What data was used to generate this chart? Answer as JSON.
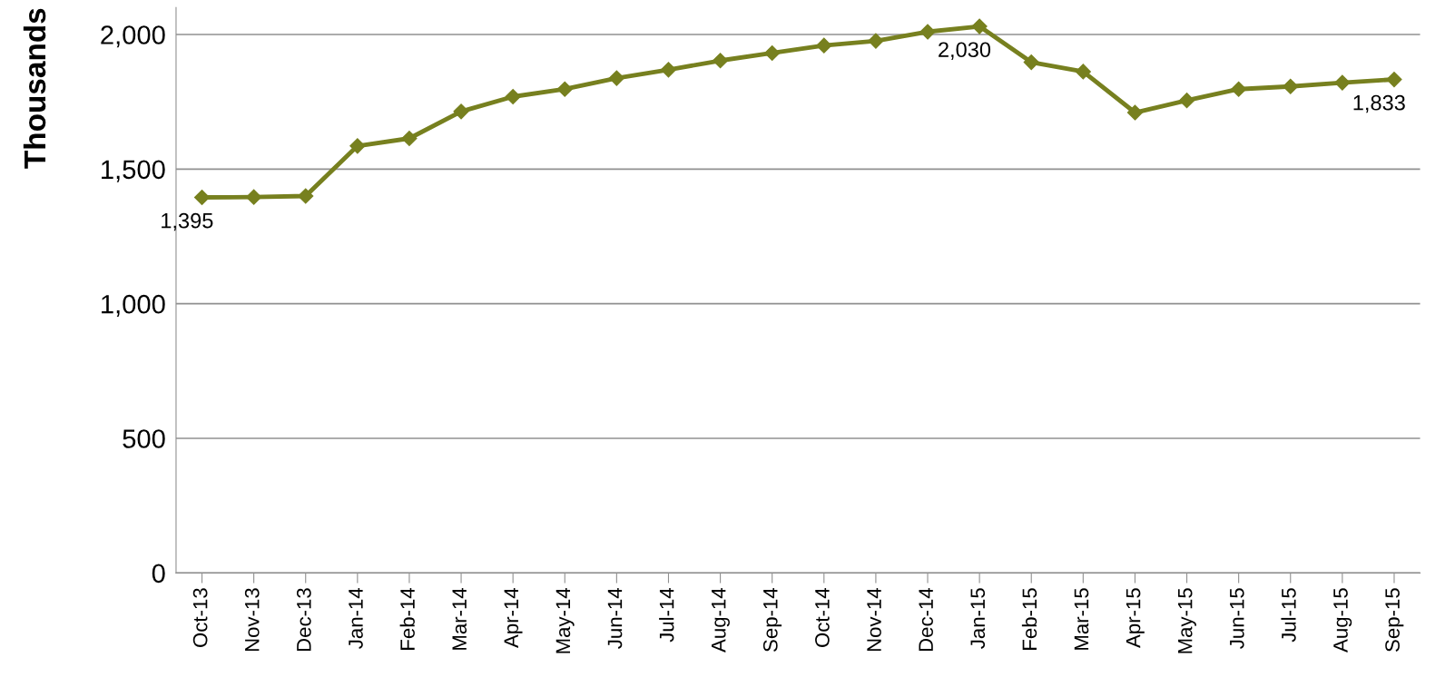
{
  "chart_data": {
    "type": "line",
    "ylabel": "Thousands",
    "categories": [
      "Oct-13",
      "Nov-13",
      "Dec-13",
      "Jan-14",
      "Feb-14",
      "Mar-14",
      "Apr-14",
      "May-14",
      "Jun-14",
      "Jul-14",
      "Aug-14",
      "Sep-14",
      "Oct-14",
      "Nov-14",
      "Dec-14",
      "Jan-15",
      "Feb-15",
      "Mar-15",
      "Apr-15",
      "May-15",
      "Jun-15",
      "Jul-15",
      "Aug-15",
      "Sep-15"
    ],
    "series": [
      {
        "color": "#77801f",
        "values": [
          1395,
          1396,
          1400,
          1586,
          1614,
          1714,
          1769,
          1797,
          1838,
          1869,
          1903,
          1931,
          1959,
          1976,
          2010,
          2030,
          1897,
          1862,
          1710,
          1755,
          1797,
          1807,
          1821,
          1833
        ],
        "value_labels": [
          "1,395",
          null,
          null,
          null,
          null,
          null,
          null,
          null,
          null,
          null,
          null,
          null,
          null,
          null,
          null,
          "2,030",
          null,
          null,
          null,
          null,
          null,
          null,
          null,
          "1,833"
        ]
      }
    ],
    "ylim": [
      0,
      2100
    ],
    "yticks": [
      0,
      {
        "value": 500,
        "label": "500"
      },
      {
        "value": 1000,
        "label": "1,000"
      },
      {
        "value": 1500,
        "label": "1,500"
      },
      {
        "value": 2000,
        "label": "2,000"
      }
    ],
    "grid": "y",
    "marker": "diamond",
    "line_style": "solid"
  }
}
